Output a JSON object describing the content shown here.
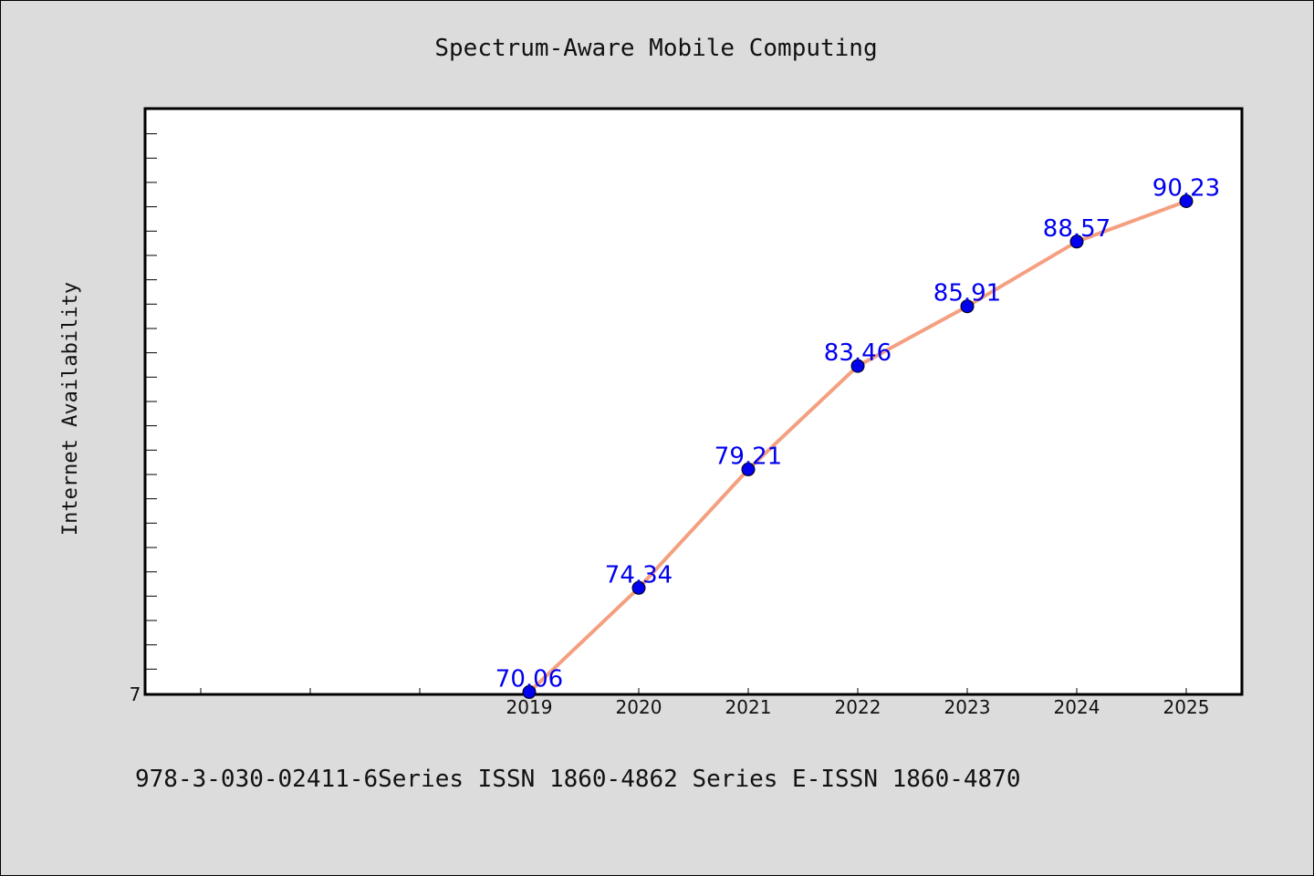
{
  "chart_data": {
    "type": "line",
    "title": "Spectrum-Aware Mobile Computing",
    "xlabel": "",
    "ylabel": "Internet Availability",
    "x": [
      "2019",
      "2020",
      "2021",
      "2022",
      "2023",
      "2024",
      "2025"
    ],
    "series": [
      {
        "values": [
          70.06,
          74.34,
          79.21,
          83.46,
          85.91,
          88.57,
          90.23
        ],
        "data_labels": [
          "70.06",
          "74.34",
          "79.21",
          "83.46",
          "85.91",
          "88.57",
          "90.23"
        ],
        "line_color": "#f4a080",
        "marker_color": "#0000ee"
      }
    ],
    "xlim": [
      2015.5,
      2025.5
    ],
    "ylim": [
      70,
      94
    ],
    "y_tick_labels": [
      "7"
    ],
    "grid": false,
    "legend": "none",
    "background_color": "#dcdcdc",
    "plot_background": "#ffffff",
    "label_color": "#0000ee"
  },
  "footer": {
    "text": "978-3-030-02411-6Series ISSN 1860-4862 Series E-ISSN 1860-4870"
  }
}
